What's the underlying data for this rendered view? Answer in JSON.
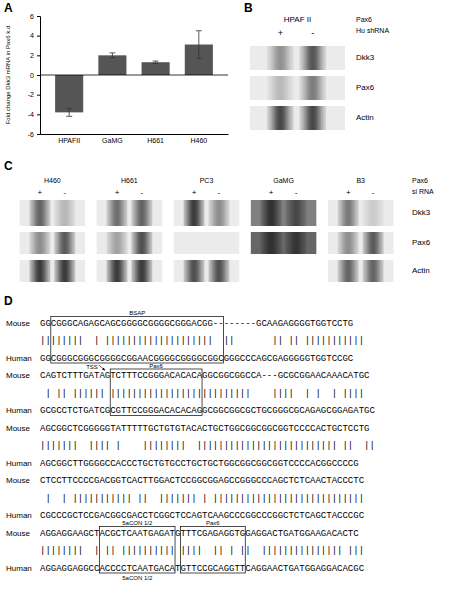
{
  "chart_data": [
    {
      "panel": "A",
      "type": "bar",
      "categories": [
        "HPAFII",
        "GaMG",
        "H661",
        "H460"
      ],
      "values": [
        -3.8,
        2.0,
        1.3,
        3.1
      ],
      "errors": [
        0.4,
        0.25,
        0.12,
        1.4
      ],
      "color": "#555555",
      "ylabel": "Fold change Dkk3 mRNA in Pax6 k.d",
      "ylim": [
        -6,
        6
      ],
      "yticks": [
        -6,
        -4,
        -2,
        0,
        2,
        4,
        6
      ]
    },
    {
      "panel": "B",
      "type": "blot",
      "title": "HPAF II",
      "lane_labels": [
        "+",
        "-"
      ],
      "side_labels": [
        "Pax6",
        "Hu shRNA"
      ],
      "row_labels": [
        "Dkk3",
        "Pax6",
        "Actin"
      ],
      "bands": [
        [
          0.45,
          0.75
        ],
        [
          0.25,
          0.55
        ],
        [
          0.82,
          0.82
        ]
      ],
      "backgrounds": [
        0.92,
        0.92,
        0.92
      ]
    },
    {
      "panel": "C",
      "type": "blot",
      "groups": [
        "H460",
        "H661",
        "PC3",
        "GaMG",
        "B3"
      ],
      "lane_labels": [
        "+",
        "-"
      ],
      "side_labels": [
        "Pax6",
        "si RNA"
      ],
      "row_labels": [
        "Dkk3",
        "Pax6",
        "Actin"
      ],
      "bands": [
        [
          [
            0.65,
            0.25
          ],
          [
            0.45,
            0.7
          ],
          [
            0.85,
            0.85
          ]
        ],
        [
          [
            0.6,
            0.65
          ],
          [
            0.35,
            0.75
          ],
          [
            0.85,
            0.85
          ]
        ],
        [
          [
            0.85,
            0.45
          ],
          [
            0.0,
            0.0
          ],
          [
            0.75,
            0.75
          ]
        ],
        [
          [
            0.7,
            0.5
          ],
          [
            0.6,
            0.55
          ],
          null
        ],
        [
          [
            0.55,
            0.15
          ],
          [
            0.45,
            0.7
          ],
          [
            0.65,
            0.65
          ]
        ]
      ],
      "backgrounds": [
        [
          0.92,
          0.92,
          0.92
        ],
        [
          0.92,
          0.92,
          0.92
        ],
        [
          0.92,
          0.92,
          0.92
        ],
        [
          0.5,
          0.4,
          null
        ],
        [
          0.92,
          0.92,
          0.92
        ]
      ]
    },
    {
      "panel": "D",
      "type": "alignment",
      "rows": [
        {
          "label": "Mouse",
          "sequence": "GGCGGGCAGAGCAGCGGGGCGGGGCGGGACGG--------GCAAGAGGGGTGGTCCTG"
        },
        {
          "label": null,
          "sequence": "||||||||  | ||||||||||||||||||||  ||       || || |||||||||||"
        },
        {
          "label": "Human",
          "sequence": "GGCGGGCGGGCGGGGCGGAACGGGGCGGGGCGGCGGGCCCAGCGAGGGGGTGGTCCGC"
        },
        {
          "label": "Mouse",
          "sequence": "CAGTCTTTGATAGTCTTTCCGGGACACACAGGCGGCGGCCA---GCGCGGAACAAACATGC"
        },
        {
          "label": null,
          "sequence": " | || |||||| ||||||||||||||||||||||||||    ||||  | |  | ||||"
        },
        {
          "label": "Human",
          "sequence": "GCGCCTCTGATCGCGTTCCGGGACACACAGGCGGCGGCGCTGCGGGCGCAGAGCGGAGATGC"
        },
        {
          "label": "Mouse",
          "sequence": "AGCGGCTCGGGGGTATTTTTGCTGTGTACACTGCTGGCGGCGGCGGTCCCCACTGCTCCTG"
        },
        {
          "label": null,
          "sequence": "|||||||  |||| |    ||||||||  |||||||||||||||||||||||||| ||  ||"
        },
        {
          "label": "Human",
          "sequence": "AGCGGCTTGGGGCCACCCTGCTGTGCCTGCTGCTGGCGGCGGCGGTCCCCACGGCCCCG"
        },
        {
          "label": "Mouse",
          "sequence": "CTCCTTCCCCGACGGTCACTTGGACTCCGGCGGAGCCGGGCCCAGCTCTCAACTACCCTC"
        },
        {
          "label": null,
          "sequence": " |  | ||||||||||| ||  ||||||| | ||||||||||||||||||||||||||||"
        },
        {
          "label": "Human",
          "sequence": "CGCCCGCTCCGACGGCGACCTCGGCTCCAGTCAAGCCCGGCCCGGCTCTCAGCTACCCGC"
        },
        {
          "label": "Mouse",
          "sequence": "AGGAGGAAGCTACGCTCAATGAGATGTTTCGAGAGGTGGAGGACTGATGGAAGACACTC"
        },
        {
          "label": null,
          "sequence": "||||||||  | || |||||||||| ||||  || | ||  ||||||||||||||| |||"
        },
        {
          "label": "Human",
          "sequence": "AGGAGGAGGCCACCCCTCAATGACATGTTCCGCAGGTTCAGGAACTGATGGAGGACACGC"
        }
      ],
      "annotations": [
        {
          "type": "box",
          "label_above": "BSAP",
          "rows": [
            0,
            2
          ],
          "start": 2,
          "end": 34
        },
        {
          "type": "arrow",
          "label": "TSS",
          "row": 3,
          "start": 12
        },
        {
          "type": "box",
          "label_above": "Pax6",
          "rows": [
            3,
            5
          ],
          "start": 13,
          "end": 30
        },
        {
          "type": "box",
          "label_above": "5aCON 1/2",
          "label_below": "5aCON 1/2",
          "rows": [
            12,
            14
          ],
          "start": 11,
          "end": 25
        },
        {
          "type": "box",
          "label_above": "Pax6",
          "rows": [
            12,
            14
          ],
          "start": 26,
          "end": 38
        }
      ]
    }
  ]
}
